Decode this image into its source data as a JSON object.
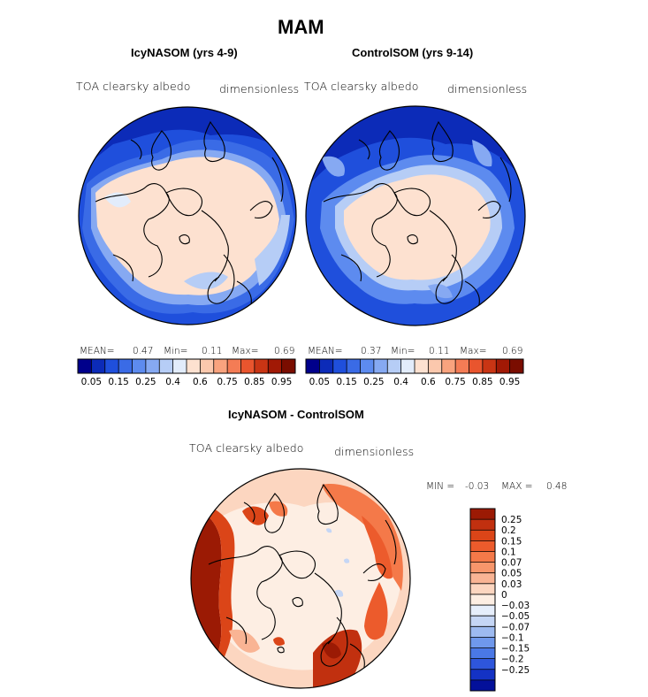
{
  "title": "MAM",
  "panels": {
    "left": {
      "title": "IcyNASOM (yrs 4-9)",
      "variable": "TOA clearsky albedo",
      "units": "dimensionless",
      "stats": {
        "mean_label": "MEAN=",
        "mean": "0.47",
        "min_label": "Min=",
        "min": "0.11",
        "max_label": "Max=",
        "max": "0.69"
      }
    },
    "right": {
      "title": "ControlSOM (yrs 9-14)",
      "variable": "TOA clearsky albedo",
      "units": "dimensionless",
      "stats": {
        "mean_label": "MEAN=",
        "mean": "0.37",
        "min_label": "Min=",
        "min": "0.11",
        "max_label": "Max=",
        "max": "0.69"
      }
    },
    "diff": {
      "title": "IcyNASOM - ControlSOM",
      "variable": "TOA clearsky albedo",
      "units": "dimensionless",
      "stats": {
        "min_label": "MIN =",
        "min": "-0.03",
        "max_label": "MAX =",
        "max": "0.48"
      }
    }
  },
  "chart_data": [
    {
      "type": "heatmap",
      "projection": "north-polar-stereographic",
      "title": "IcyNASOM (yrs 4-9)",
      "variable": "TOA clearsky albedo",
      "units": "dimensionless",
      "mean": 0.47,
      "min": 0.11,
      "max": 0.69,
      "colorbar": {
        "levels": [
          0.05,
          0.1,
          0.15,
          0.2,
          0.25,
          0.3,
          0.4,
          0.5,
          0.6,
          0.65,
          0.75,
          0.8,
          0.85,
          0.9,
          0.95
        ],
        "tick_labels": [
          "0.05",
          "0.15",
          "0.25",
          "0.4",
          "0.6",
          "0.75",
          "0.85",
          "0.95"
        ],
        "colors": [
          "#00008b",
          "#0c2bb8",
          "#1f4fdc",
          "#3a6be6",
          "#5d8bef",
          "#86a9f2",
          "#b6cdf6",
          "#e2ecfb",
          "#fde1d0",
          "#fbc8ad",
          "#f9a37e",
          "#f47c55",
          "#e9552e",
          "#c93514",
          "#a11905",
          "#7a0d00"
        ]
      }
    },
    {
      "type": "heatmap",
      "projection": "north-polar-stereographic",
      "title": "ControlSOM (yrs 9-14)",
      "variable": "TOA clearsky albedo",
      "units": "dimensionless",
      "mean": 0.37,
      "min": 0.11,
      "max": 0.69,
      "colorbar": {
        "levels": [
          0.05,
          0.1,
          0.15,
          0.2,
          0.25,
          0.3,
          0.4,
          0.5,
          0.6,
          0.65,
          0.75,
          0.8,
          0.85,
          0.9,
          0.95
        ],
        "tick_labels": [
          "0.05",
          "0.15",
          "0.25",
          "0.4",
          "0.6",
          "0.75",
          "0.85",
          "0.95"
        ],
        "colors": [
          "#00008b",
          "#0c2bb8",
          "#1f4fdc",
          "#3a6be6",
          "#5d8bef",
          "#86a9f2",
          "#b6cdf6",
          "#e2ecfb",
          "#fde1d0",
          "#fbc8ad",
          "#f9a37e",
          "#f47c55",
          "#e9552e",
          "#c93514",
          "#a11905",
          "#7a0d00"
        ]
      }
    },
    {
      "type": "heatmap",
      "projection": "north-polar-stereographic",
      "title": "IcyNASOM - ControlSOM",
      "variable": "TOA clearsky albedo",
      "units": "dimensionless",
      "min": -0.03,
      "max": 0.48,
      "colorbar": {
        "orientation": "vertical",
        "tick_labels": [
          "0.25",
          "0.2",
          "0.15",
          "0.1",
          "0.07",
          "0.05",
          "0.03",
          "0",
          "−0.03",
          "−0.05",
          "−0.07",
          "−0.1",
          "−0.15",
          "−0.2",
          "−0.25"
        ],
        "colors": [
          "#9b1a04",
          "#c1300f",
          "#db4518",
          "#ec5b2c",
          "#f47949",
          "#f7966b",
          "#f9b494",
          "#fcd6c0",
          "#fdeee3",
          "#e6eefb",
          "#c5d6f5",
          "#9dbaf0",
          "#6f98ec",
          "#4a78e6",
          "#2e56dc",
          "#1432c4",
          "#03109a"
        ]
      }
    }
  ]
}
